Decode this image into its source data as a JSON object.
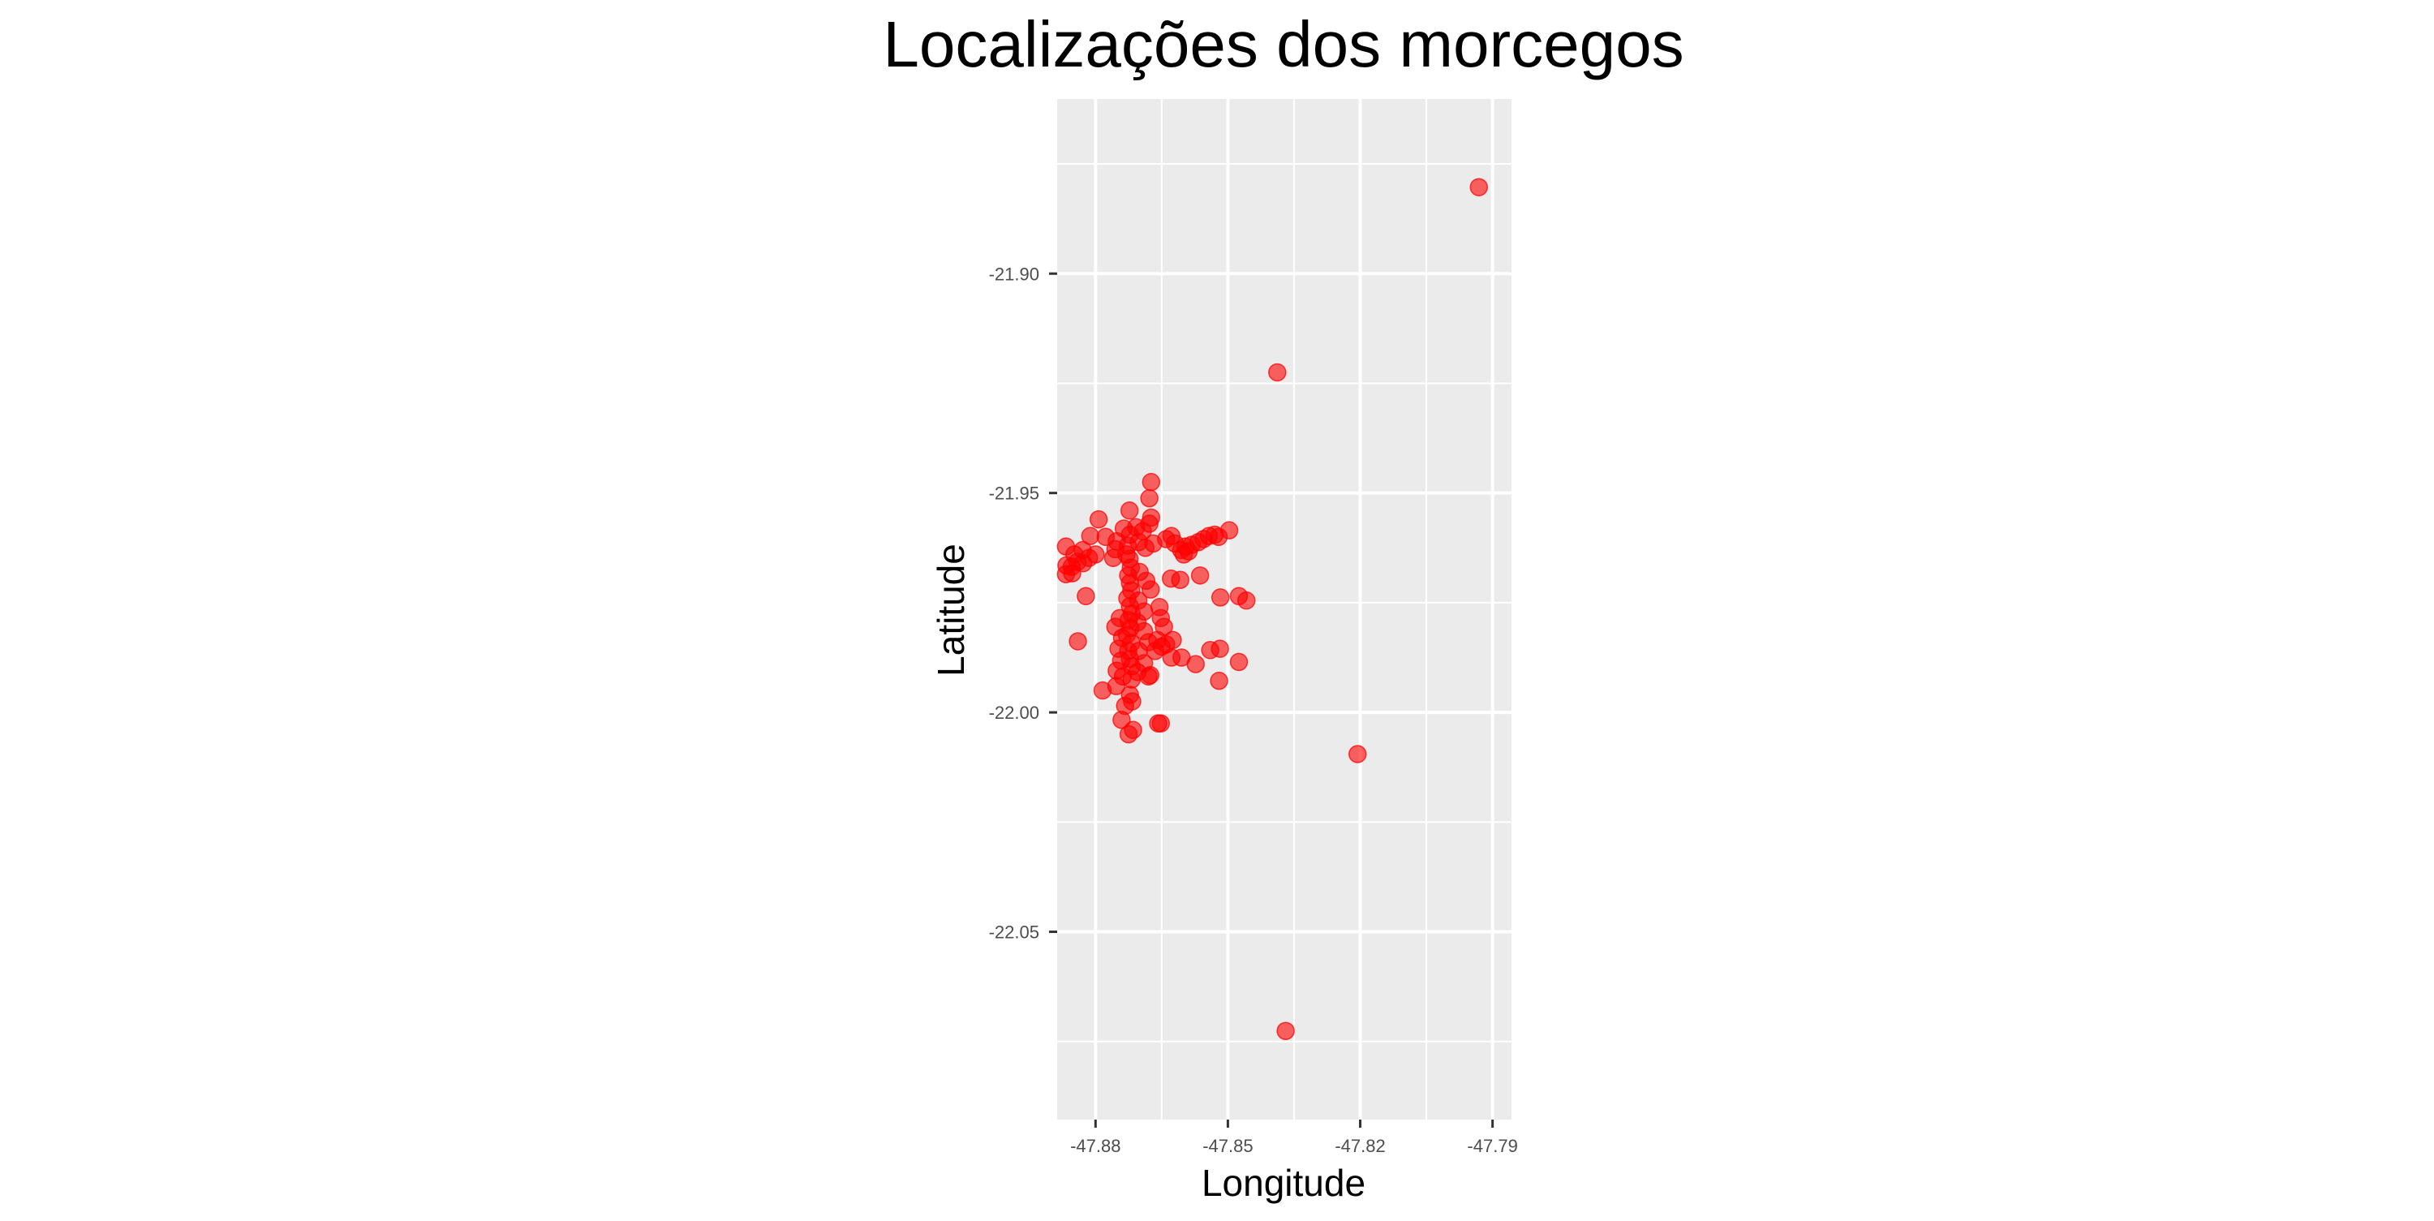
{
  "chart_data": {
    "type": "scatter",
    "title": "Localizações dos morcegos",
    "xlabel": "Longitude",
    "ylabel": "Latitude",
    "xlim": [
      -47.8887,
      -47.7857
    ],
    "ylim": [
      -22.0928,
      -21.8602
    ],
    "x_ticks": [
      -47.88,
      -47.85,
      -47.82,
      -47.79
    ],
    "x_tick_labels": [
      "-47.88",
      "-47.85",
      "-47.82",
      "-47.79"
    ],
    "x_minor_ticks": [
      -47.865,
      -47.835,
      -47.805
    ],
    "y_ticks": [
      -21.9,
      -21.95,
      -22.0,
      -22.05
    ],
    "y_tick_labels": [
      "-21.90",
      "-21.95",
      "-22.00",
      "-22.05"
    ],
    "y_minor_ticks": [
      -21.875,
      -21.925,
      -21.975,
      -22.025,
      -22.075
    ],
    "grid": true,
    "legend": "none",
    "colors": {
      "point": "#ff0000",
      "panel": "#ebebeb",
      "grid": "#ffffff",
      "tick": "#333333"
    },
    "series": [
      {
        "points": [
          [
            -47.7931,
            -21.8803
          ],
          [
            -47.8388,
            -21.9225
          ],
          [
            -47.8206,
            -22.0095
          ],
          [
            -47.8369,
            -22.0726
          ],
          [
            -47.8674,
            -21.9475
          ],
          [
            -47.8678,
            -21.9512
          ],
          [
            -47.8674,
            -21.9556
          ],
          [
            -47.8723,
            -21.954
          ],
          [
            -47.8736,
            -21.9581
          ],
          [
            -47.8708,
            -21.9578
          ],
          [
            -47.8678,
            -21.957
          ],
          [
            -47.8693,
            -21.9587
          ],
          [
            -47.8722,
            -21.9595
          ],
          [
            -47.8793,
            -21.956
          ],
          [
            -47.8812,
            -21.9598
          ],
          [
            -47.8777,
            -21.96
          ],
          [
            -47.8752,
            -21.961
          ],
          [
            -47.8727,
            -21.962
          ],
          [
            -47.8702,
            -21.9612
          ],
          [
            -47.873,
            -21.964
          ],
          [
            -47.8755,
            -21.9628
          ],
          [
            -47.8687,
            -21.9625
          ],
          [
            -47.8669,
            -21.9615
          ],
          [
            -47.864,
            -21.9605
          ],
          [
            -47.862,
            -21.9615
          ],
          [
            -47.8606,
            -21.963
          ],
          [
            -47.8596,
            -21.9622
          ],
          [
            -47.8582,
            -21.9618
          ],
          [
            -47.8567,
            -21.9612
          ],
          [
            -47.8555,
            -21.9605
          ],
          [
            -47.8543,
            -21.9598
          ],
          [
            -47.853,
            -21.9595
          ],
          [
            -47.8521,
            -21.96
          ],
          [
            -47.8497,
            -21.9585
          ],
          [
            -47.86,
            -21.964
          ],
          [
            -47.8589,
            -21.9633
          ],
          [
            -47.8628,
            -21.9598
          ],
          [
            -47.8867,
            -21.9622
          ],
          [
            -47.8848,
            -21.964
          ],
          [
            -47.8829,
            -21.963
          ],
          [
            -47.8815,
            -21.9648
          ],
          [
            -47.88,
            -21.964
          ],
          [
            -47.8866,
            -21.9665
          ],
          [
            -47.8854,
            -21.9668
          ],
          [
            -47.8841,
            -21.9657
          ],
          [
            -47.8828,
            -21.966
          ],
          [
            -47.8867,
            -21.9685
          ],
          [
            -47.8853,
            -21.9683
          ],
          [
            -47.876,
            -21.9648
          ],
          [
            -47.8723,
            -21.965
          ],
          [
            -47.872,
            -21.967
          ],
          [
            -47.8726,
            -21.9688
          ],
          [
            -47.8722,
            -21.9705
          ],
          [
            -47.8719,
            -21.9722
          ],
          [
            -47.8728,
            -21.974
          ],
          [
            -47.8722,
            -21.9758
          ],
          [
            -47.8718,
            -21.9775
          ],
          [
            -47.8725,
            -21.979
          ],
          [
            -47.8721,
            -21.9808
          ],
          [
            -47.8729,
            -21.9823
          ],
          [
            -47.8719,
            -21.9842
          ],
          [
            -47.8726,
            -21.986
          ],
          [
            -47.8722,
            -21.9878
          ],
          [
            -47.8718,
            -21.9895
          ],
          [
            -47.87,
            -21.968
          ],
          [
            -47.8685,
            -21.97
          ],
          [
            -47.8675,
            -21.972
          ],
          [
            -47.8703,
            -21.9745
          ],
          [
            -47.869,
            -21.977
          ],
          [
            -47.8705,
            -21.9795
          ],
          [
            -47.869,
            -21.9815
          ],
          [
            -47.868,
            -21.984
          ],
          [
            -47.8702,
            -21.986
          ],
          [
            -47.8745,
            -21.9785
          ],
          [
            -47.8755,
            -21.9805
          ],
          [
            -47.874,
            -21.983
          ],
          [
            -47.8748,
            -21.9855
          ],
          [
            -47.8742,
            -21.9882
          ],
          [
            -47.8752,
            -21.9905
          ],
          [
            -47.8738,
            -21.9918
          ],
          [
            -47.8718,
            -21.9925
          ],
          [
            -47.8705,
            -21.9908
          ],
          [
            -47.869,
            -21.9888
          ],
          [
            -47.8676,
            -21.9915
          ],
          [
            -47.8665,
            -21.986
          ],
          [
            -47.866,
            -21.9835
          ],
          [
            -47.865,
            -21.985
          ],
          [
            -47.8652,
            -21.9785
          ],
          [
            -47.8629,
            -21.9695
          ],
          [
            -47.8608,
            -21.9698
          ],
          [
            -47.8563,
            -21.9688
          ],
          [
            -47.8517,
            -21.9738
          ],
          [
            -47.8475,
            -21.9735
          ],
          [
            -47.8458,
            -21.9745
          ],
          [
            -47.8475,
            -21.9885
          ],
          [
            -47.8518,
            -21.9855
          ],
          [
            -47.854,
            -21.9858
          ],
          [
            -47.852,
            -21.9928
          ],
          [
            -47.8573,
            -21.989
          ],
          [
            -47.8605,
            -21.9875
          ],
          [
            -47.8628,
            -21.9875
          ],
          [
            -47.864,
            -21.9845
          ],
          [
            -47.8625,
            -21.9835
          ],
          [
            -47.8645,
            -21.9805
          ],
          [
            -47.8655,
            -21.976
          ],
          [
            -47.868,
            -21.9918
          ],
          [
            -47.8822,
            -21.9735
          ],
          [
            -47.884,
            -21.9838
          ],
          [
            -47.8784,
            -21.995
          ],
          [
            -47.8753,
            -21.994
          ],
          [
            -47.8722,
            -21.996
          ],
          [
            -47.8717,
            -21.9975
          ],
          [
            -47.8658,
            -22.0025
          ],
          [
            -47.8652,
            -22.0025
          ],
          [
            -47.8715,
            -22.004
          ],
          [
            -47.8725,
            -22.005
          ],
          [
            -47.8741,
            -22.0017
          ],
          [
            -47.8733,
            -21.9985
          ]
        ]
      }
    ]
  }
}
